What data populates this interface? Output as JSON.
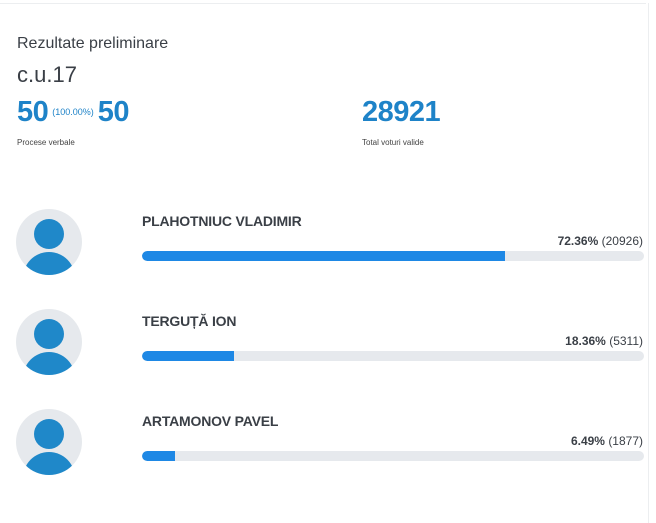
{
  "header": {
    "title": "Rezultate preliminare",
    "constituency": "c.u.17"
  },
  "stats": {
    "processed": "50",
    "processed_pct": "(100.00%)",
    "total_pv": "50",
    "pv_caption": "Procese verbale",
    "valid_votes": "28921",
    "votes_caption": "Total voturi valide"
  },
  "colors": {
    "accent": "#1e83c8",
    "bar": "#1e88e5",
    "track": "#e6e9ed"
  },
  "candidates": [
    {
      "name": "PLAHOTNIUC VLADIMIR",
      "percent_label": "72.36%",
      "votes_label": "(20926)",
      "share": 72.36
    },
    {
      "name": "TERGUȚĂ ION",
      "percent_label": "18.36%",
      "votes_label": "(5311)",
      "share": 18.36
    },
    {
      "name": "ARTAMONOV PAVEL",
      "percent_label": "6.49%",
      "votes_label": "(1877)",
      "share": 6.49
    }
  ]
}
